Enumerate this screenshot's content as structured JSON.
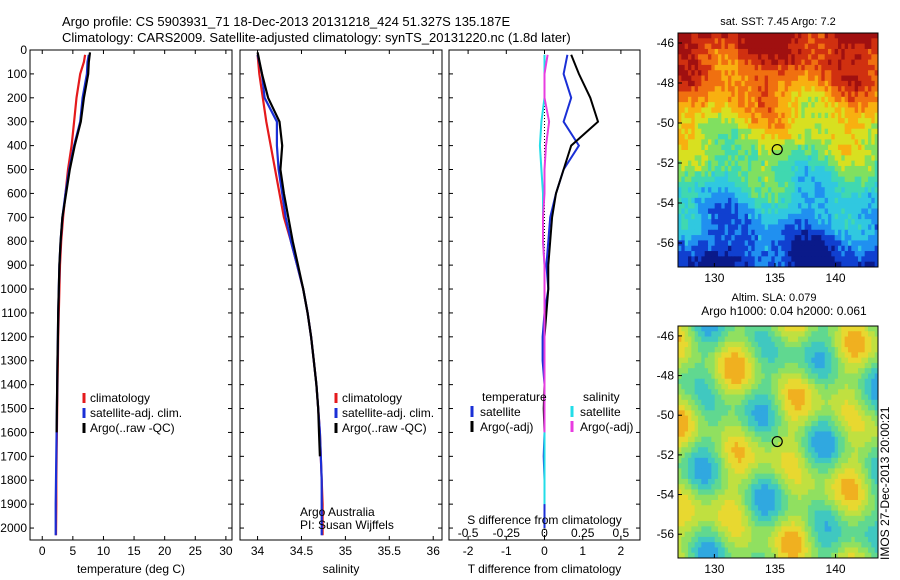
{
  "header": {
    "line1": "Argo profile: CS 5903931_71 18-Dec-2013 20131218_424 51.327S 135.187E",
    "line2": "Climatology: CARS2009. Satellite-adjusted climatology: synTS_20131220.nc (1.8d later)"
  },
  "colors": {
    "clim": "#e41a1c",
    "sat": "#1a2fd6",
    "argo": "#000000",
    "sat_s": "#22dde8",
    "argo_s": "#e83ce0"
  },
  "chart_data": [
    {
      "type": "line",
      "xlabel": "temperature (deg C)",
      "ylabel": "",
      "xlim": [
        -2,
        31
      ],
      "ylim": [
        2050,
        0
      ],
      "x_ticks": [
        "0",
        "5",
        "10",
        "15",
        "20",
        "25",
        "30"
      ],
      "y_ticks": [
        "0",
        "100",
        "200",
        "300",
        "400",
        "500",
        "600",
        "700",
        "800",
        "900",
        "1000",
        "1100",
        "1200",
        "1300",
        "1400",
        "1500",
        "1600",
        "1700",
        "1800",
        "1900",
        "2000"
      ],
      "legend": [
        "climatology",
        "satellite-adj. clim.",
        "Argo(..raw -QC)"
      ],
      "series": [
        {
          "name": "climatology",
          "x": [
            7.0,
            6.8,
            6.2,
            5.6,
            5.2,
            4.8,
            4.2,
            3.8,
            3.4,
            3.1,
            2.9,
            2.8,
            2.7,
            2.6,
            2.55,
            2.5,
            2.45,
            2.4,
            2.35,
            2.3,
            2.3,
            2.25
          ],
          "y": [
            20,
            50,
            100,
            200,
            300,
            400,
            500,
            600,
            700,
            800,
            900,
            1000,
            1100,
            1200,
            1300,
            1400,
            1500,
            1600,
            1700,
            1800,
            1900,
            2030
          ]
        },
        {
          "name": "satellite-adj. clim.",
          "x": [
            7.6,
            7.4,
            7.3,
            6.6,
            6.2,
            5.2,
            4.4,
            3.8,
            3.3,
            3.0,
            2.8,
            2.7,
            2.6,
            2.55,
            2.5,
            2.45,
            2.4,
            2.35,
            2.3,
            2.25,
            2.2,
            2.2
          ],
          "y": [
            20,
            50,
            100,
            200,
            300,
            400,
            500,
            600,
            700,
            800,
            900,
            1000,
            1100,
            1200,
            1300,
            1400,
            1500,
            1600,
            1700,
            1800,
            1900,
            2030
          ]
        },
        {
          "name": "Argo(..raw -QC)",
          "x": [
            7.8,
            7.6,
            7.5,
            6.8,
            6.3,
            5.3,
            4.5,
            3.9,
            3.3,
            3.0,
            2.8,
            2.7,
            2.6,
            2.55,
            2.5,
            2.45,
            2.4,
            2.35
          ],
          "y": [
            10,
            50,
            100,
            200,
            300,
            400,
            500,
            600,
            700,
            800,
            900,
            1000,
            1100,
            1200,
            1300,
            1400,
            1500,
            1600
          ]
        }
      ]
    },
    {
      "type": "line",
      "xlabel": "salinity",
      "ylabel": "",
      "xlim": [
        33.8,
        36.1
      ],
      "ylim": [
        2050,
        0
      ],
      "x_ticks": [
        "34",
        "34.5",
        "35",
        "35.5",
        "36"
      ],
      "legend": [
        "climatology",
        "satellite-adj. clim.",
        "Argo(..raw -QC)"
      ],
      "annotation": [
        "Argo Australia",
        "PI: Susan Wijffels"
      ],
      "series": [
        {
          "name": "climatology",
          "x": [
            34.0,
            34.02,
            34.06,
            34.1,
            34.15,
            34.2,
            34.25,
            34.3,
            34.38,
            34.45,
            34.52,
            34.57,
            34.61,
            34.64,
            34.67,
            34.69,
            34.71,
            34.72,
            34.73,
            34.74,
            34.74,
            34.74
          ],
          "y": [
            20,
            100,
            200,
            300,
            400,
            500,
            600,
            700,
            800,
            900,
            1000,
            1100,
            1200,
            1300,
            1400,
            1500,
            1600,
            1700,
            1800,
            1900,
            2000,
            2030
          ]
        },
        {
          "name": "satellite-adj. clim.",
          "x": [
            34.0,
            34.05,
            34.08,
            34.22,
            34.22,
            34.24,
            34.28,
            34.32,
            34.38,
            34.45,
            34.52,
            34.57,
            34.61,
            34.64,
            34.67,
            34.69,
            34.71,
            34.72,
            34.73,
            34.73,
            34.73,
            34.73
          ],
          "y": [
            20,
            100,
            200,
            300,
            400,
            500,
            600,
            700,
            800,
            900,
            1000,
            1100,
            1200,
            1300,
            1400,
            1500,
            1600,
            1700,
            1800,
            1900,
            2000,
            2030
          ]
        },
        {
          "name": "Argo(..raw -QC)",
          "x": [
            34.0,
            34.05,
            34.12,
            34.25,
            34.28,
            34.26,
            34.3,
            34.35,
            34.4,
            34.46,
            34.52,
            34.57,
            34.61,
            34.64,
            34.67,
            34.69,
            34.7,
            34.71
          ],
          "y": [
            10,
            100,
            200,
            300,
            400,
            500,
            600,
            700,
            800,
            900,
            1000,
            1100,
            1200,
            1300,
            1400,
            1500,
            1600,
            1700
          ]
        }
      ]
    },
    {
      "type": "line",
      "xlabel": "T difference from climatology",
      "x2label": "S difference from climatology",
      "xlim": [
        -2.5,
        2.5
      ],
      "x2lim": [
        -0.625,
        0.625
      ],
      "ylim": [
        2050,
        0
      ],
      "x_ticks": [
        "-2",
        "-1",
        "0",
        "1",
        "2"
      ],
      "x2_ticks": [
        "-0.5",
        "-0.25",
        "0",
        "0.25",
        "0.5"
      ],
      "legend_titles": [
        "temperature",
        "salinity"
      ],
      "legend": [
        "satellite",
        "Argo(-adj)",
        "satellite",
        "Argo(-adj)"
      ],
      "series": [
        {
          "name": "satellite",
          "quantity": "temperature",
          "x": [
            0.6,
            0.5,
            0.7,
            0.5,
            0.9,
            0.5,
            0.3,
            0.15,
            0.1,
            0.05,
            0.1,
            0.0,
            -0.05,
            -0.05,
            0.0,
            0.0,
            0.0,
            -0.02,
            0.0,
            0.0,
            0.0
          ],
          "y": [
            20,
            100,
            200,
            300,
            400,
            500,
            600,
            700,
            800,
            900,
            1000,
            1100,
            1200,
            1300,
            1400,
            1500,
            1600,
            1700,
            1800,
            1900,
            2000
          ]
        },
        {
          "name": "Argo(-adj)",
          "quantity": "temperature",
          "x": [
            0.7,
            0.9,
            1.2,
            1.4,
            0.7,
            0.5,
            0.3,
            0.2,
            0.15,
            0.1,
            0.1,
            0.05,
            0.0,
            0.0,
            0.0,
            -0.02,
            0.0
          ],
          "y": [
            20,
            100,
            200,
            300,
            400,
            500,
            600,
            700,
            800,
            900,
            1000,
            1100,
            1200,
            1300,
            1400,
            1500,
            1600
          ]
        },
        {
          "name": "satellite",
          "quantity": "salinity",
          "x": [
            0.0,
            0.0,
            0.0,
            -0.02,
            -0.03,
            -0.02,
            -0.01,
            -0.01,
            -0.01,
            0.0,
            0.0,
            0.0,
            0.0,
            0.0,
            0.0,
            0.0,
            0.0,
            0.0,
            0.0,
            0.0
          ],
          "y": [
            20,
            100,
            200,
            300,
            400,
            500,
            600,
            700,
            800,
            900,
            1000,
            1100,
            1200,
            1300,
            1400,
            1500,
            1600,
            1700,
            1800,
            1900
          ]
        },
        {
          "name": "Argo(-adj)",
          "quantity": "salinity",
          "x": [
            0.02,
            0.0,
            0.0,
            0.03,
            0.01,
            0.0,
            0.0,
            -0.01,
            -0.01,
            0.0,
            0.0,
            0.0,
            0.0,
            0.0,
            0.0,
            0.0,
            0.0
          ],
          "y": [
            20,
            100,
            200,
            300,
            400,
            500,
            600,
            700,
            800,
            900,
            1000,
            1100,
            1200,
            1300,
            1400,
            1500,
            1600
          ]
        }
      ]
    },
    {
      "type": "heatmap",
      "title": "sat. SST: 7.45 Argo: 7.2",
      "xlim": [
        127,
        143.5
      ],
      "ylim": [
        -57.2,
        -45.5
      ],
      "x_ticks": [
        "130",
        "135",
        "140"
      ],
      "y_ticks": [
        "-46",
        "-48",
        "-50",
        "-52",
        "-54",
        "-56"
      ],
      "marker": {
        "lon": 135.187,
        "lat": -51.327
      }
    },
    {
      "type": "heatmap",
      "title": "Altim. SLA: 0.079",
      "subtitle": "Argo h1000: 0.04 h2000: 0.061",
      "xlim": [
        127,
        143.5
      ],
      "ylim": [
        -57.2,
        -45.5
      ],
      "x_ticks": [
        "130",
        "135",
        "140"
      ],
      "y_ticks": [
        "-46",
        "-48",
        "-50",
        "-52",
        "-54",
        "-56"
      ],
      "marker": {
        "lon": 135.187,
        "lat": -51.327
      }
    }
  ],
  "credit": "IMOS 27-Dec-2013 20:00:21"
}
